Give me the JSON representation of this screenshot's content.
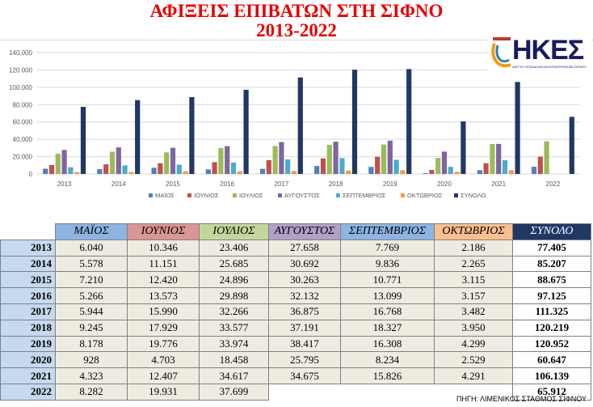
{
  "title": {
    "line1": "ΑΦΙΞΕΙΣ ΕΠΙΒΑΤΩΝ ΣΤΗ ΣΙΦΝΟ",
    "line2": "2013-2022"
  },
  "logo": {
    "text": "ΗΚΕΣ",
    "subtitle": "ΔΙΚΤΥΟ ΞΕΝΟΔΟΧΙΚΩΝ ΕΠΙΧΕΙΡΗΣΕΩΝ ΣΙΦΝΟΥ"
  },
  "colors": {
    "series": [
      "#4f81bd",
      "#c0504d",
      "#9bbb59",
      "#8064a2",
      "#4bacc6",
      "#f79646",
      "#1f3864"
    ],
    "header_bg": [
      "#8db4e2",
      "#da9694",
      "#c4d79b",
      "#b1a0c7",
      "#8db4e2",
      "#fabf8f",
      "#1f3864"
    ],
    "title": "#e60000"
  },
  "chart_data": {
    "type": "bar",
    "categories": [
      "2013",
      "2014",
      "2015",
      "2016",
      "2017",
      "2018",
      "2019",
      "2020",
      "2021",
      "2022"
    ],
    "ylim": [
      0,
      140000
    ],
    "yticks": [
      "0",
      "20.000",
      "40.000",
      "60.000",
      "80.000",
      "100.000",
      "120.000",
      "140.000"
    ],
    "grid": true,
    "legend": "bottom",
    "series": [
      {
        "name": "ΜΑΪΟΣ",
        "values": [
          6040,
          5578,
          7210,
          5266,
          5944,
          9245,
          8178,
          928,
          4323,
          8282
        ]
      },
      {
        "name": "ΙΟΥΝΙΟΣ",
        "values": [
          10346,
          11151,
          12420,
          13573,
          15990,
          17929,
          19776,
          4703,
          12407,
          19931
        ]
      },
      {
        "name": "ΙΟΥΛΙΟΣ",
        "values": [
          23406,
          25685,
          24896,
          29898,
          32266,
          33577,
          33974,
          18458,
          34617,
          37699
        ]
      },
      {
        "name": "ΑΥΓΟΥΣΤΟΣ",
        "values": [
          27658,
          30692,
          30263,
          32132,
          36875,
          37191,
          38417,
          25795,
          34675,
          null
        ]
      },
      {
        "name": "ΣΕΠΤΕΜΒΡΙΟΣ",
        "values": [
          7769,
          9836,
          10771,
          13099,
          16768,
          18327,
          16308,
          8234,
          15826,
          null
        ]
      },
      {
        "name": "ΟΚΤΩΒΡΙΟΣ",
        "values": [
          2186,
          2265,
          3115,
          3157,
          3482,
          3950,
          4299,
          2529,
          4291,
          null
        ]
      },
      {
        "name": "ΣΥΝΟΛΟ",
        "values": [
          77405,
          85207,
          88675,
          97125,
          111325,
          120219,
          120952,
          60647,
          106139,
          65912
        ]
      }
    ]
  },
  "table": {
    "headers": [
      "ΜΑΪΟΣ",
      "ΙΟΥΝΙΟΣ",
      "ΙΟΥΛΙΟΣ",
      "ΑΥΓΟΥΣΤΟΣ",
      "ΣΕΠΤΕΜΒΡΙΟΣ",
      "ΟΚΤΩΒΡΙΟΣ",
      "ΣΥΝΟΛΟ"
    ],
    "rows": [
      {
        "year": "2013",
        "cells": [
          "6.040",
          "10.346",
          "23.406",
          "27.658",
          "7.769",
          "2.186",
          "77.405"
        ]
      },
      {
        "year": "2014",
        "cells": [
          "5.578",
          "11.151",
          "25.685",
          "30.692",
          "9.836",
          "2.265",
          "85.207"
        ]
      },
      {
        "year": "2015",
        "cells": [
          "7.210",
          "12.420",
          "24.896",
          "30.263",
          "10.771",
          "3.115",
          "88.675"
        ]
      },
      {
        "year": "2016",
        "cells": [
          "5.266",
          "13.573",
          "29.898",
          "32.132",
          "13.099",
          "3.157",
          "97.125"
        ]
      },
      {
        "year": "2017",
        "cells": [
          "5.944",
          "15.990",
          "32.266",
          "36.875",
          "16.768",
          "3.482",
          "111.325"
        ]
      },
      {
        "year": "2018",
        "cells": [
          "9.245",
          "17.929",
          "33.577",
          "37.191",
          "18.327",
          "3.950",
          "120.219"
        ]
      },
      {
        "year": "2019",
        "cells": [
          "8.178",
          "19.776",
          "33.974",
          "38.417",
          "16.308",
          "4.299",
          "120.952"
        ]
      },
      {
        "year": "2020",
        "cells": [
          "928",
          "4.703",
          "18.458",
          "25.795",
          "8.234",
          "2.529",
          "60.647"
        ]
      },
      {
        "year": "2021",
        "cells": [
          "4.323",
          "12.407",
          "34.617",
          "34.675",
          "15.826",
          "4.291",
          "106.139"
        ]
      },
      {
        "year": "2022",
        "cells": [
          "8.282",
          "19.931",
          "37.699",
          "",
          "",
          "",
          "65.912"
        ]
      }
    ]
  },
  "source": "ΠΗΓΗ: ΛΙΜΕΝΙΚΟΣ ΣΤΑΘΜΟΣ ΣΙΦΝΟΥ"
}
